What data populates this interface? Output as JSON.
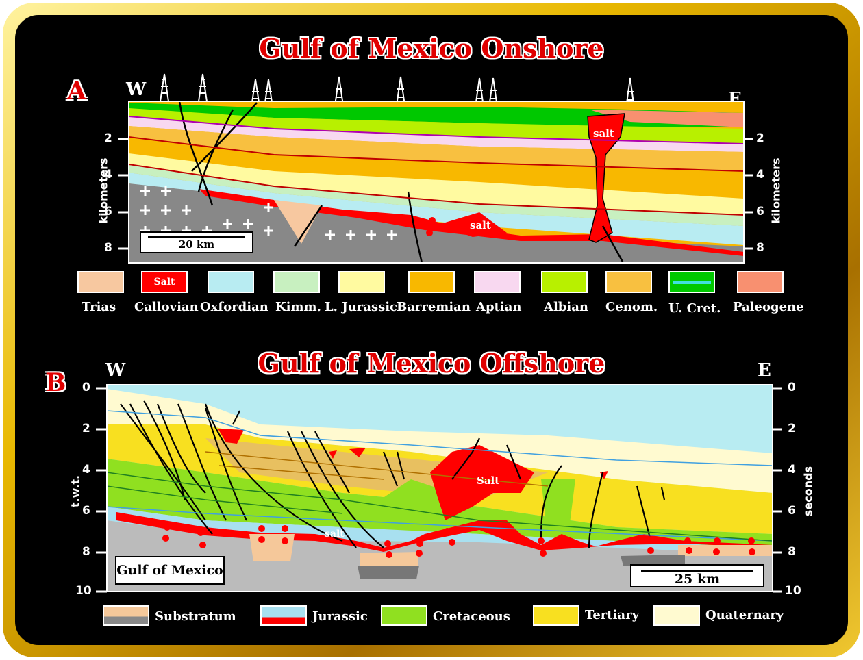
{
  "panel_a": {
    "title": "Gulf of Mexico Onshore",
    "letter": "A",
    "west": "W",
    "east": "E",
    "axis_label_left": "kilometers",
    "axis_label_right": "kilometers",
    "ticks": [
      "2",
      "4",
      "6",
      "8"
    ],
    "scale_bar": "20 km",
    "salt_labels": [
      "salt",
      "salt"
    ],
    "legend": [
      {
        "label": "Trias",
        "color": "#f7c8a0"
      },
      {
        "label": "Callovian",
        "color": "#ff0000",
        "inner": "Salt"
      },
      {
        "label": "Oxfordian",
        "color": "#b8ecf2"
      },
      {
        "label": "Kimm.",
        "color": "#c8f0c0"
      },
      {
        "label": "L. Jurassic",
        "color": "#fffaa0"
      },
      {
        "label": "Barremian",
        "color": "#f8b800"
      },
      {
        "label": "Aptian",
        "color": "#f8d8f0"
      },
      {
        "label": "Albian",
        "color": "#b8f000"
      },
      {
        "label": "Cenom.",
        "color": "#f8c040"
      },
      {
        "label": "U. Cret.",
        "color": "#00c800"
      },
      {
        "label": "Paleogene",
        "color": "#f89070"
      }
    ]
  },
  "panel_b": {
    "title": "Gulf of Mexico Offshore",
    "letter": "B",
    "west": "W",
    "east": "E",
    "axis_label_left": "t.w.t.",
    "axis_label_right": "seconds",
    "ticks": [
      "0",
      "2",
      "4",
      "6",
      "8",
      "10"
    ],
    "scale_bar": "25 km",
    "region_label": "Gulf of Mexico",
    "salt_labels": [
      "Salt",
      "salt"
    ],
    "legend": [
      {
        "label": "Substratum",
        "color": "#f5c89a"
      },
      {
        "label": "Jurassic",
        "color": "#a8e0f0"
      },
      {
        "label": "Cretaceous",
        "color": "#90e020"
      },
      {
        "label": "Tertiary",
        "color": "#f8e020"
      },
      {
        "label": "Quaternary",
        "color": "#fffad0"
      }
    ]
  }
}
